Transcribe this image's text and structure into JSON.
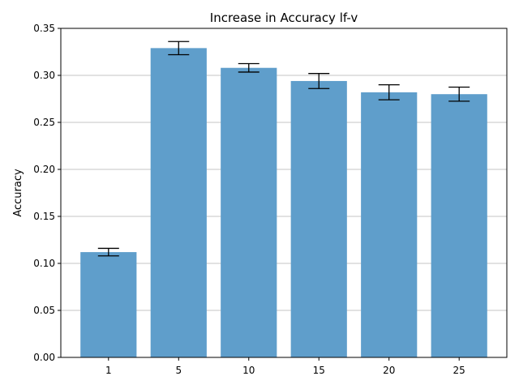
{
  "chart_data": {
    "type": "bar",
    "title": "Increase in Accuracy lf-v",
    "xlabel": "",
    "ylabel": "Accuracy",
    "categories": [
      "1",
      "5",
      "10",
      "15",
      "20",
      "25"
    ],
    "values": [
      0.112,
      0.329,
      0.308,
      0.294,
      0.282,
      0.28
    ],
    "errors": [
      0.004,
      0.007,
      0.0045,
      0.008,
      0.008,
      0.0075
    ],
    "ylim": [
      0,
      0.35
    ],
    "yticks": [
      0.0,
      0.05,
      0.1,
      0.15,
      0.2,
      0.25,
      0.3,
      0.35
    ],
    "ytick_labels": [
      "0.00",
      "0.05",
      "0.10",
      "0.15",
      "0.20",
      "0.25",
      "0.30",
      "0.35"
    ],
    "grid": "y",
    "bar_color": "#5f9ecb",
    "error_color": "#000000",
    "grid_color": "#b0b0b0"
  }
}
